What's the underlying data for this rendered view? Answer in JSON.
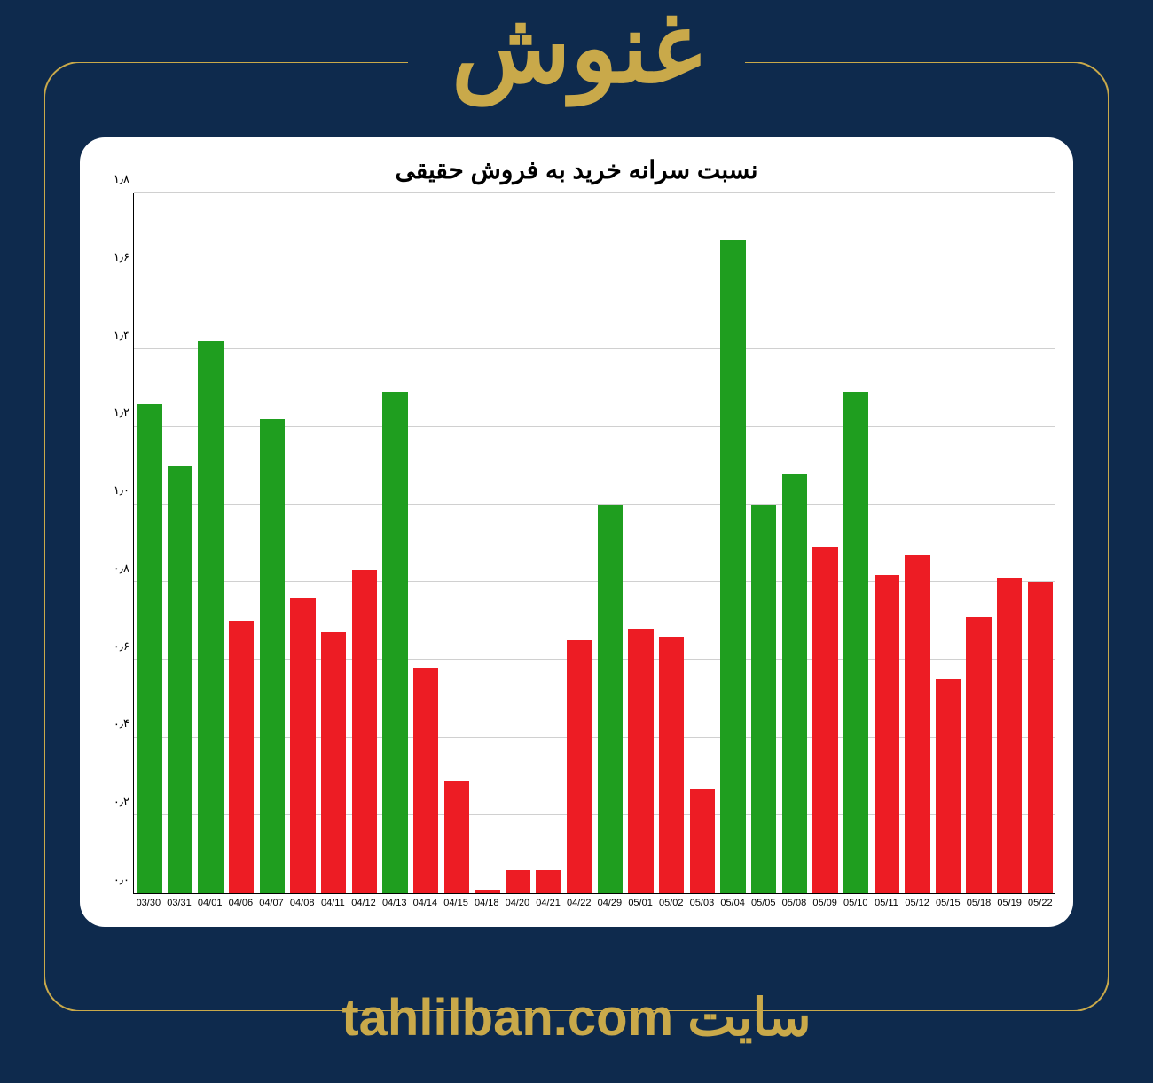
{
  "header": {
    "title": "غنوش"
  },
  "footer": {
    "label": "سایت",
    "url": "tahlilban.com"
  },
  "chart": {
    "type": "bar",
    "title": "نسبت سرانه خرید به فروش حقیقی",
    "background_color": "#ffffff",
    "grid_color": "#d0d0d0",
    "colors": {
      "up": "#1f9e1f",
      "down": "#ed1c24"
    },
    "ylim": [
      0,
      1.8
    ],
    "ytick_step": 0.2,
    "yticks": [
      "۰٫۰",
      "۰٫۲",
      "۰٫۴",
      "۰٫۶",
      "۰٫۸",
      "۱٫۰",
      "۱٫۲",
      "۱٫۴",
      "۱٫۶",
      "۱٫۸"
    ],
    "title_fontsize": 28,
    "xlabel_fontsize": 11,
    "ylabel_fontsize": 13,
    "bar_width_ratio": 0.82,
    "categories": [
      "03/30",
      "03/31",
      "04/01",
      "04/06",
      "04/07",
      "04/08",
      "04/11",
      "04/12",
      "04/13",
      "04/14",
      "04/15",
      "04/18",
      "04/20",
      "04/21",
      "04/22",
      "04/29",
      "05/01",
      "05/02",
      "05/03",
      "05/04",
      "05/05",
      "05/08",
      "05/09",
      "05/10",
      "05/11",
      "05/12",
      "05/15",
      "05/18",
      "05/19",
      "05/22"
    ],
    "values": [
      1.26,
      1.1,
      1.42,
      0.7,
      1.22,
      0.76,
      0.67,
      0.83,
      1.29,
      0.58,
      0.29,
      0.01,
      0.06,
      0.06,
      0.65,
      1.0,
      0.68,
      0.66,
      0.27,
      1.68,
      1.0,
      1.08,
      0.89,
      1.29,
      0.82,
      0.87,
      0.55,
      0.71,
      0.81,
      0.8
    ],
    "bar_colors": [
      "up",
      "up",
      "up",
      "down",
      "up",
      "down",
      "down",
      "down",
      "up",
      "down",
      "down",
      "down",
      "down",
      "down",
      "down",
      "up",
      "down",
      "down",
      "down",
      "up",
      "up",
      "up",
      "down",
      "up",
      "down",
      "down",
      "down",
      "down",
      "down",
      "down"
    ]
  },
  "page": {
    "bg": "#0e2a4d",
    "accent": "#c9a94a"
  }
}
